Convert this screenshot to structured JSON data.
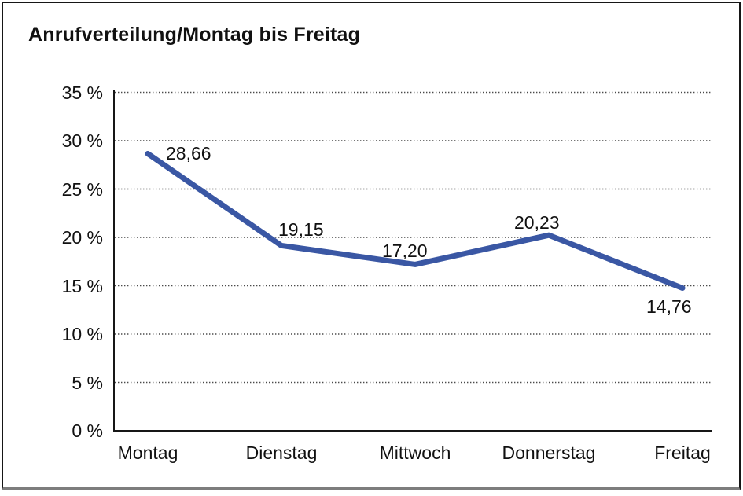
{
  "window": {
    "background_color": "#ffffff",
    "frame_border_color": "#161616",
    "frame_bottom_color": "#7d7d7d"
  },
  "chart_data": {
    "type": "line",
    "title": "Anrufverteilung/Montag bis Freitag",
    "categories": [
      "Montag",
      "Dienstag",
      "Mittwoch",
      "Donnerstag",
      "Freitag"
    ],
    "values": [
      28.66,
      19.15,
      17.2,
      20.23,
      14.76
    ],
    "value_labels": [
      "28,66",
      "19,15",
      "17,20",
      "20,23",
      "14,76"
    ],
    "y_ticks": [
      0,
      5,
      10,
      15,
      20,
      25,
      30,
      35
    ],
    "y_tick_labels": [
      "0 %",
      "5 %",
      "10 %",
      "15 %",
      "20 %",
      "25 %",
      "30 %",
      "35 %"
    ],
    "ylim": [
      0,
      35
    ],
    "xlabel": "",
    "ylabel": "",
    "grid": "horizontal-dotted",
    "legend": "none",
    "line_color": "#3a57a4",
    "axis_color": "#161616",
    "gridline_color": "#4a4a4a",
    "text_color": "#111111"
  }
}
